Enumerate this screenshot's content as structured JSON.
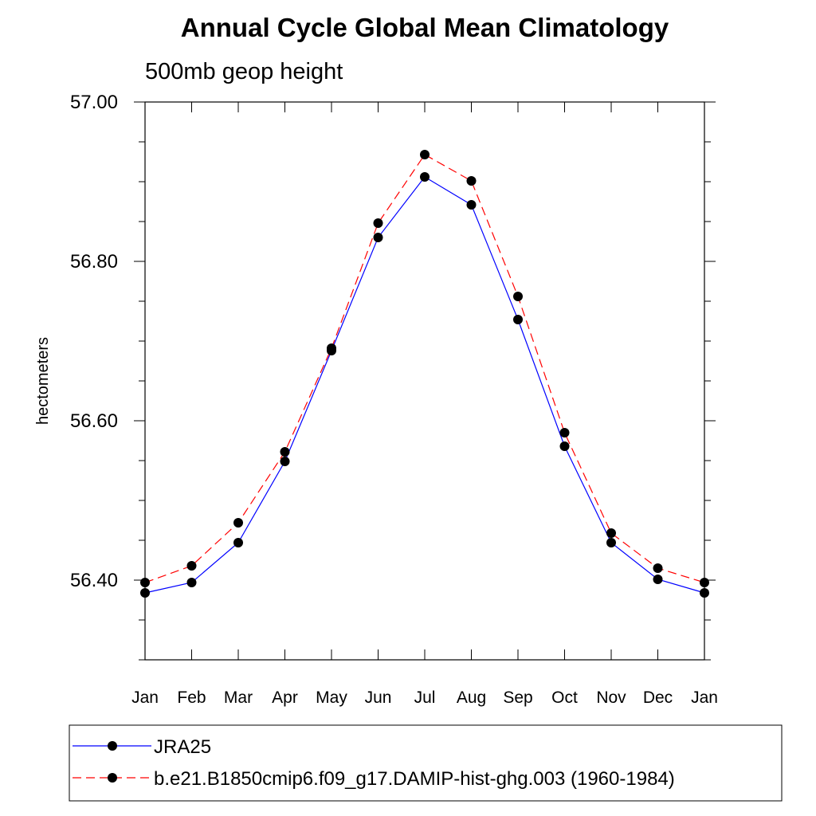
{
  "chart_data": {
    "type": "line",
    "title": "Annual Cycle Global Mean Climatology",
    "subtitle": "500mb geop height",
    "xlabel": "",
    "ylabel": "hectometers",
    "ylim": [
      56.3,
      57.0
    ],
    "ytick_values": [
      56.4,
      56.6,
      56.8,
      57.0
    ],
    "ytick_labels": [
      "56.40",
      "56.60",
      "56.80",
      "57.00"
    ],
    "categories": [
      "Jan",
      "Feb",
      "Mar",
      "Apr",
      "May",
      "Jun",
      "Jul",
      "Aug",
      "Sep",
      "Oct",
      "Nov",
      "Dec",
      "Jan"
    ],
    "grid": false,
    "legend_position": "bottom",
    "series": [
      {
        "name": "JRA25",
        "color": "#0000ff",
        "line_style": "solid",
        "marker": "filled-circle",
        "values": [
          56.384,
          56.397,
          56.447,
          56.549,
          56.688,
          56.83,
          56.906,
          56.871,
          56.727,
          56.568,
          56.447,
          56.401,
          56.384
        ]
      },
      {
        "name": "b.e21.B1850cmip6.f09_g17.DAMIP-hist-ghg.003 (1960-1984)",
        "color": "#ff0000",
        "line_style": "dashed",
        "marker": "filled-circle",
        "values": [
          56.397,
          56.418,
          56.472,
          56.561,
          56.691,
          56.848,
          56.934,
          56.901,
          56.756,
          56.585,
          56.459,
          56.415,
          56.397
        ]
      }
    ]
  }
}
